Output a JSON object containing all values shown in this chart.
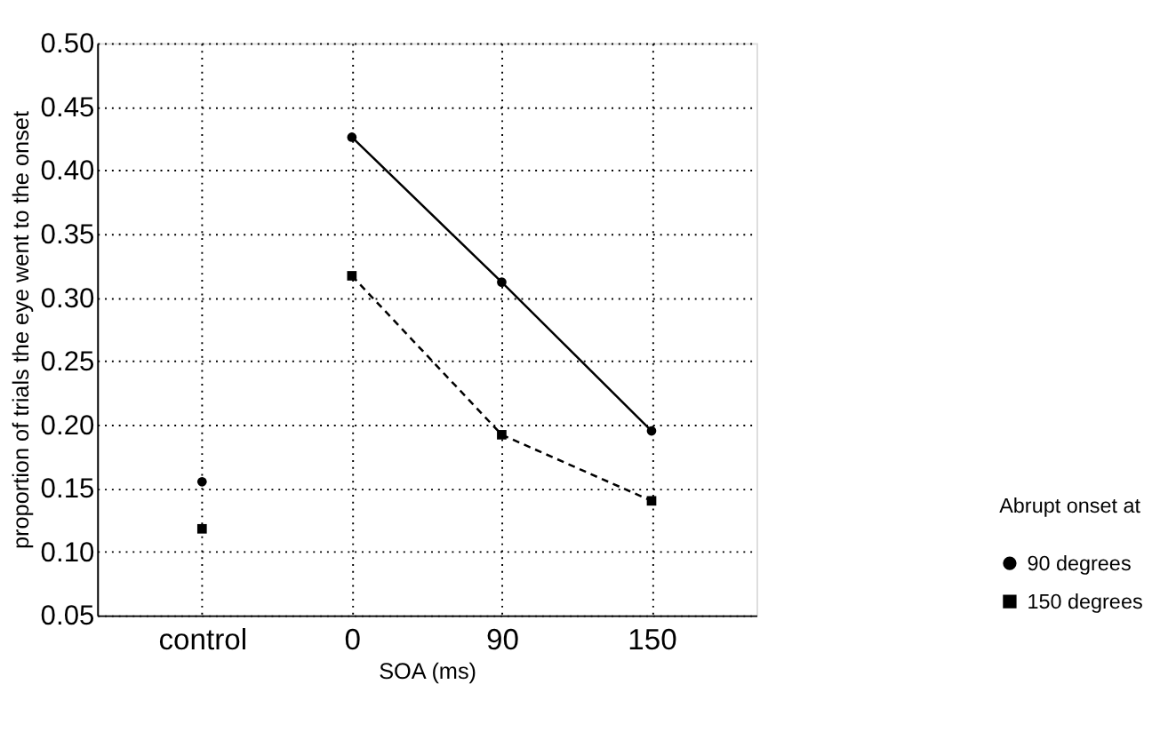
{
  "chart_data": {
    "type": "line",
    "xlabel": "SOA (ms)",
    "ylabel": "proportion of trials the eye went to the onset",
    "legend_title": "Abrupt onset at",
    "categories": [
      "control",
      "0",
      "90",
      "150"
    ],
    "series": [
      {
        "name": "90 degrees",
        "color": "#000000",
        "marker": "circle",
        "line_style": "solid",
        "values": [
          null,
          0.426,
          0.312,
          0.195
        ]
      },
      {
        "name": "150 degrees",
        "color": "#000000",
        "marker": "square",
        "line_style": "dashed",
        "values": [
          null,
          0.317,
          0.192,
          0.14
        ]
      },
      {
        "type": "scatter",
        "color": "#000000",
        "marker": "circle",
        "values": [
          0.155,
          null,
          null,
          null
        ]
      },
      {
        "type": "scatter",
        "color": "#000000",
        "marker": "square",
        "values": [
          0.118,
          null,
          null,
          null
        ]
      }
    ],
    "ylim": [
      0.05,
      0.5
    ],
    "yticks": [
      0.05,
      {
        "value": 0.1,
        "label": "0.10"
      },
      0.15,
      {
        "value": 0.2,
        "label": "0.20"
      },
      0.25,
      {
        "value": 0.3,
        "label": "0.30"
      },
      0.35,
      {
        "value": 0.4,
        "label": "0.40"
      },
      0.45,
      {
        "value": 0.5,
        "label": "0.50"
      }
    ],
    "grid": true,
    "legend": "bottom right"
  }
}
